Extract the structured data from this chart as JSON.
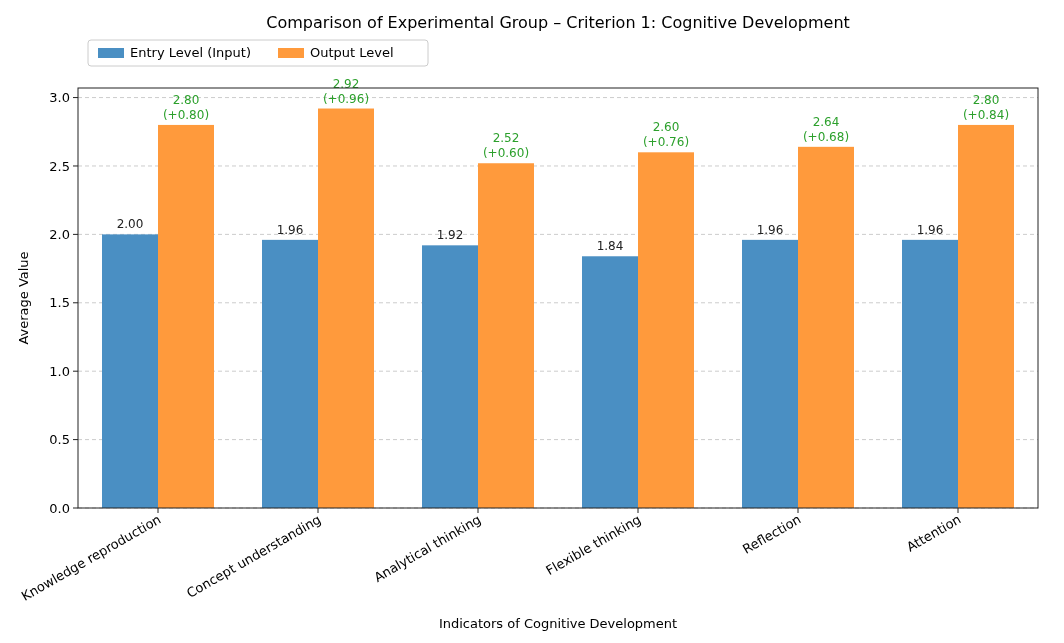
{
  "chart_data": {
    "type": "bar",
    "title": "Comparison of Experimental Group – Criterion 1: Cognitive Development",
    "xlabel": "Indicators of Cognitive Development",
    "ylabel": "Average Value",
    "categories": [
      "Knowledge reproduction",
      "Concept understanding",
      "Analytical thinking",
      "Flexible thinking",
      "Reflection",
      "Attention"
    ],
    "series": [
      {
        "name": "Entry Level (Input)",
        "color": "#4a8fc3",
        "values": [
          2.0,
          1.96,
          1.92,
          1.84,
          1.96,
          1.96
        ],
        "value_labels": [
          "2.00",
          "1.96",
          "1.92",
          "1.84",
          "1.96",
          "1.96"
        ]
      },
      {
        "name": "Output Level",
        "color": "#ff9a3c",
        "values": [
          2.8,
          2.92,
          2.52,
          2.6,
          2.64,
          2.8
        ],
        "value_labels": [
          "2.80\n(+0.80)",
          "2.92\n(+0.96)",
          "2.52\n(+0.60)",
          "2.60\n(+0.76)",
          "2.64\n(+0.68)",
          "2.80\n(+0.84)"
        ]
      }
    ],
    "ylim": [
      0,
      3.07
    ],
    "yticks": [
      {
        "value": 0,
        "label": "0.0"
      },
      {
        "value": 0.5,
        "label": "0.5"
      },
      {
        "value": 1,
        "label": "1.0"
      },
      {
        "value": 1.5,
        "label": "1.5"
      },
      {
        "value": 2,
        "label": "2.0"
      },
      {
        "value": 2.5,
        "label": "2.5"
      },
      {
        "value": 3,
        "label": "3.0"
      }
    ],
    "grid": "y",
    "legend": "top left"
  }
}
